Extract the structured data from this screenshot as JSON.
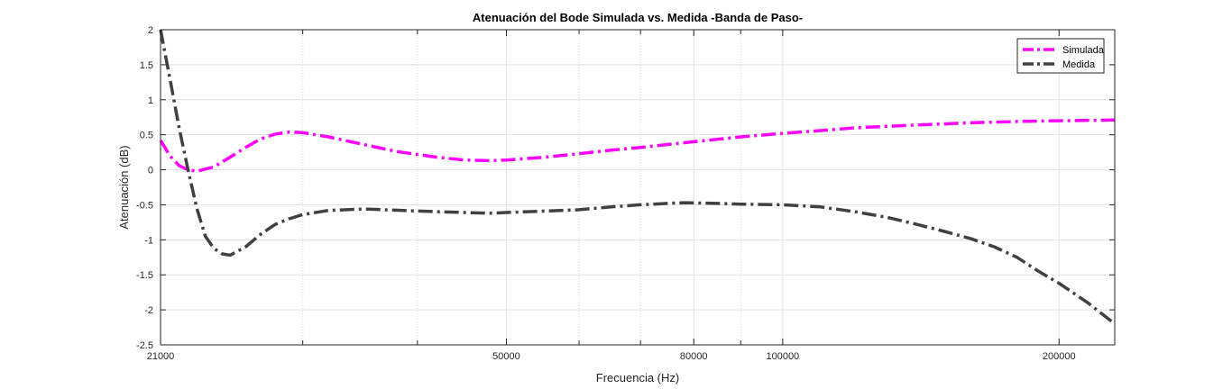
{
  "chart_data": {
    "type": "line",
    "title": "Atenuación del Bode Simulada vs. Medida -Banda de Paso-",
    "xlabel": "Frecuencia (Hz)",
    "ylabel": "Atenuación (dB)",
    "xscale": "log",
    "xlim": [
      21000,
      230000
    ],
    "ylim": [
      -2.5,
      2
    ],
    "x_ticks": [
      21000,
      50000,
      80000,
      100000,
      200000
    ],
    "x_tick_labels": [
      "21000",
      "50000",
      "80000",
      "100000",
      "200000"
    ],
    "x_minor_grid": [
      30000,
      40000,
      60000,
      70000,
      90000
    ],
    "y_ticks": [
      -2.5,
      -2,
      -1.5,
      -1,
      -0.5,
      0,
      0.5,
      1,
      1.5,
      2
    ],
    "y_tick_labels": [
      "-2.5",
      "-2",
      "-1.5",
      "-1",
      "-0.5",
      "0",
      "0.5",
      "1",
      "1.5",
      "2"
    ],
    "grid": true,
    "legend": "top-right",
    "series": [
      {
        "name": "Simulada",
        "color": "#ff00ff",
        "style": "dash-dot",
        "points": [
          [
            21000,
            0.42
          ],
          [
            21500,
            0.2
          ],
          [
            22000,
            0.06
          ],
          [
            22500,
            0.0
          ],
          [
            23000,
            -0.02
          ],
          [
            24000,
            0.04
          ],
          [
            25000,
            0.18
          ],
          [
            26000,
            0.32
          ],
          [
            27000,
            0.44
          ],
          [
            28000,
            0.51
          ],
          [
            29000,
            0.54
          ],
          [
            30000,
            0.53
          ],
          [
            32000,
            0.47
          ],
          [
            35000,
            0.36
          ],
          [
            38000,
            0.26
          ],
          [
            42000,
            0.18
          ],
          [
            45000,
            0.14
          ],
          [
            48000,
            0.13
          ],
          [
            50000,
            0.14
          ],
          [
            55000,
            0.18
          ],
          [
            60000,
            0.23
          ],
          [
            65000,
            0.28
          ],
          [
            70000,
            0.32
          ],
          [
            80000,
            0.4
          ],
          [
            90000,
            0.47
          ],
          [
            100000,
            0.52
          ],
          [
            110000,
            0.56
          ],
          [
            120000,
            0.6
          ],
          [
            140000,
            0.64
          ],
          [
            160000,
            0.67
          ],
          [
            180000,
            0.69
          ],
          [
            200000,
            0.7
          ],
          [
            230000,
            0.71
          ]
        ]
      },
      {
        "name": "Medida",
        "color": "#404040",
        "style": "dash-dot",
        "points": [
          [
            21000,
            2.0
          ],
          [
            21500,
            1.3
          ],
          [
            22000,
            0.6
          ],
          [
            22500,
            0.0
          ],
          [
            23000,
            -0.55
          ],
          [
            23500,
            -0.95
          ],
          [
            24000,
            -1.12
          ],
          [
            24500,
            -1.2
          ],
          [
            25000,
            -1.22
          ],
          [
            26000,
            -1.1
          ],
          [
            27000,
            -0.92
          ],
          [
            28000,
            -0.78
          ],
          [
            29000,
            -0.7
          ],
          [
            30000,
            -0.64
          ],
          [
            32000,
            -0.58
          ],
          [
            35000,
            -0.56
          ],
          [
            40000,
            -0.59
          ],
          [
            45000,
            -0.61
          ],
          [
            48000,
            -0.62
          ],
          [
            50000,
            -0.61
          ],
          [
            55000,
            -0.59
          ],
          [
            60000,
            -0.57
          ],
          [
            65000,
            -0.53
          ],
          [
            70000,
            -0.5
          ],
          [
            75000,
            -0.48
          ],
          [
            78000,
            -0.47
          ],
          [
            85000,
            -0.48
          ],
          [
            90000,
            -0.49
          ],
          [
            100000,
            -0.5
          ],
          [
            110000,
            -0.53
          ],
          [
            120000,
            -0.6
          ],
          [
            130000,
            -0.68
          ],
          [
            140000,
            -0.78
          ],
          [
            150000,
            -0.88
          ],
          [
            160000,
            -0.98
          ],
          [
            170000,
            -1.1
          ],
          [
            180000,
            -1.25
          ],
          [
            190000,
            -1.45
          ],
          [
            200000,
            -1.62
          ],
          [
            215000,
            -1.9
          ],
          [
            230000,
            -2.2
          ]
        ]
      }
    ]
  }
}
